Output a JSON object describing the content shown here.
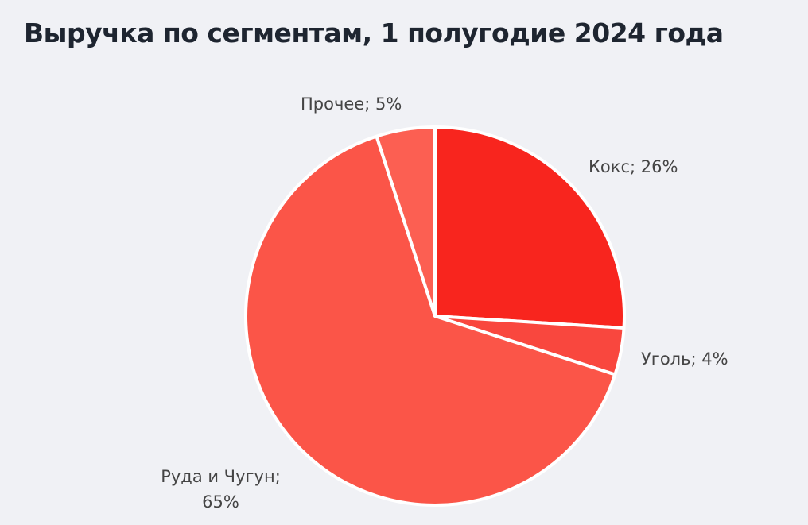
{
  "chart_data": {
    "type": "pie",
    "title": "Выручка по сегментам, 1 полугодие 2024 года",
    "values": [
      26,
      4,
      65,
      5
    ],
    "value_labels": [
      "Кокс; 26%",
      "Уголь; 4%",
      "Руда и Чугун; 65%",
      "Прочее; 5%"
    ],
    "colors": [
      "#f8251e",
      "#f9473e",
      "#fb5548",
      "#fc5f52"
    ]
  }
}
